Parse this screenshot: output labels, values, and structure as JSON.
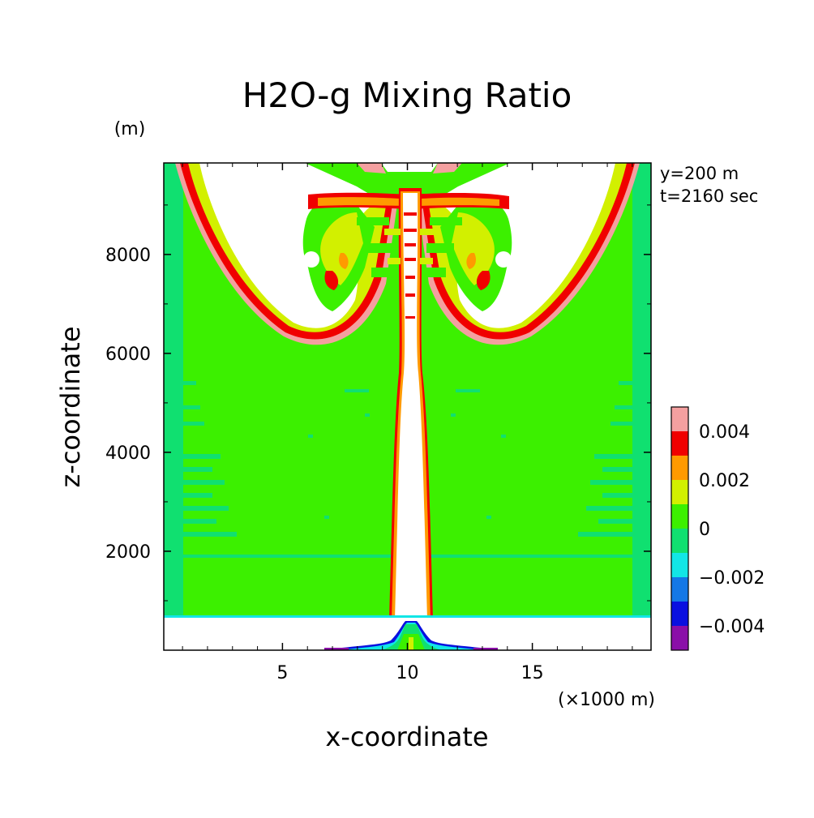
{
  "chart_data": {
    "type": "heatmap",
    "title": "H2O-g Mixing Ratio",
    "xlabel": "x-coordinate",
    "ylabel": "z-coordinate",
    "x_unit": "(×1000 m)",
    "y_unit": "(m)",
    "xlim": [
      0.25,
      19.75
    ],
    "ylim": [
      0,
      9850
    ],
    "x_ticks": [
      5,
      10,
      15
    ],
    "x_tick_labels": [
      "5",
      "10",
      "15"
    ],
    "y_ticks": [
      2000,
      4000,
      6000,
      8000
    ],
    "y_tick_labels": [
      "2000",
      "4000",
      "6000",
      "8000"
    ],
    "annotations": [
      "y=200 m",
      "t=2160 sec"
    ],
    "grid": false,
    "colorbar": {
      "levels": [
        -0.005,
        -0.004,
        -0.003,
        -0.002,
        -0.001,
        0,
        0.001,
        0.002,
        0.003,
        0.004,
        0.005
      ],
      "colors": [
        "#8a0fa8",
        "#0a10e0",
        "#1478e6",
        "#12e6e6",
        "#10e070",
        "#3cf000",
        "#d2f000",
        "#ff9a00",
        "#f00000",
        "#f4a0a0"
      ],
      "tick_values": [
        -0.004,
        -0.002,
        0,
        0.002,
        0.004
      ],
      "tick_labels": [
        "−0.004",
        "−0.002",
        "0",
        "0.002",
        "0.004"
      ]
    },
    "regions": [
      {
        "name": "background",
        "value": 0.0005
      },
      {
        "name": "ground-layer",
        "z_range": [
          0,
          700
        ],
        "value": "blank"
      },
      {
        "name": "central-column",
        "x_center": 10,
        "z_range": [
          700,
          9850
        ],
        "value": "blank"
      },
      {
        "name": "left-plume",
        "x_range": [
          1,
          9.5
        ],
        "z_range": [
          6200,
          9850
        ],
        "value": "blank"
      },
      {
        "name": "right-plume",
        "x_range": [
          10.5,
          19
        ],
        "z_range": [
          6200,
          9850
        ],
        "value": "blank"
      }
    ]
  }
}
